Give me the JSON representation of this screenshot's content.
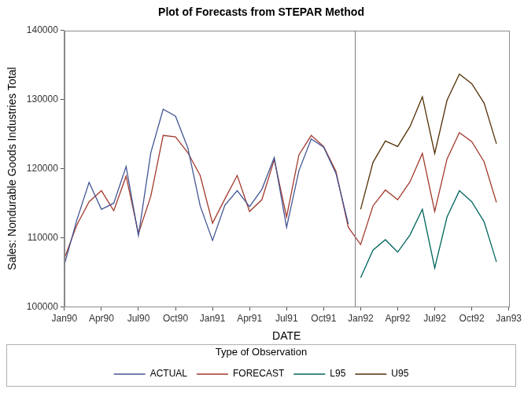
{
  "chart_data": {
    "type": "line",
    "title": "Plot of Forecasts from STEPAR Method",
    "x_label": "DATE",
    "y_label": "Sales: Nondurable Goods Industries Total",
    "legend_title": "Type of Observation",
    "categories": [
      "Jan90",
      null,
      null,
      "Apr90",
      null,
      null,
      "Jul90",
      null,
      null,
      "Oct90",
      null,
      null,
      "Jan91",
      null,
      null,
      "Apr91",
      null,
      null,
      "Jul91",
      null,
      null,
      "Oct91",
      null,
      null,
      "Jan92",
      null,
      null,
      "Apr92",
      null,
      null,
      "Jul92",
      null,
      null,
      "Oct92",
      null,
      null,
      "Jan93"
    ],
    "series": [
      {
        "name": "ACTUAL",
        "color": "#445694",
        "values": [
          106100,
          112500,
          118000,
          114100,
          115000,
          120300,
          110300,
          122300,
          128600,
          127600,
          123000,
          114600,
          109600,
          114700,
          116800,
          114500,
          117000,
          121600,
          111500,
          119700,
          124300,
          123100,
          119300,
          112000,
          null,
          null,
          null,
          null,
          null,
          null,
          null,
          null,
          null,
          null,
          null,
          null,
          null
        ]
      },
      {
        "name": "FORECAST",
        "color": "#A23A2E",
        "values": [
          107000,
          111800,
          115200,
          116800,
          113900,
          118900,
          110600,
          116000,
          124800,
          124600,
          122300,
          119000,
          112100,
          115600,
          119000,
          113800,
          115500,
          121300,
          113000,
          122000,
          124800,
          123200,
          119600,
          111500,
          109000,
          114600,
          116900,
          115500,
          118100,
          122200,
          113800,
          121400,
          125200,
          123900,
          121000,
          115100,
          null
        ]
      },
      {
        "name": "L95",
        "color": "#01665E",
        "values": [
          null,
          null,
          null,
          null,
          null,
          null,
          null,
          null,
          null,
          null,
          null,
          null,
          null,
          null,
          null,
          null,
          null,
          null,
          null,
          null,
          null,
          null,
          null,
          null,
          104200,
          108200,
          109700,
          107900,
          110400,
          114100,
          105600,
          113000,
          116800,
          115200,
          112300,
          106500,
          null
        ]
      },
      {
        "name": "U95",
        "color": "#543005",
        "values": [
          null,
          null,
          null,
          null,
          null,
          null,
          null,
          null,
          null,
          null,
          null,
          null,
          null,
          null,
          null,
          null,
          null,
          null,
          null,
          null,
          null,
          null,
          null,
          null,
          114100,
          120900,
          124000,
          123200,
          126100,
          130400,
          122200,
          129900,
          133700,
          132300,
          129500,
          123600,
          null
        ]
      }
    ],
    "reference_line": 23.5,
    "ylim": [
      100000,
      140000
    ],
    "yticks": [
      100000,
      110000,
      120000,
      130000,
      140000
    ],
    "grid": false,
    "legend": "bottom"
  }
}
